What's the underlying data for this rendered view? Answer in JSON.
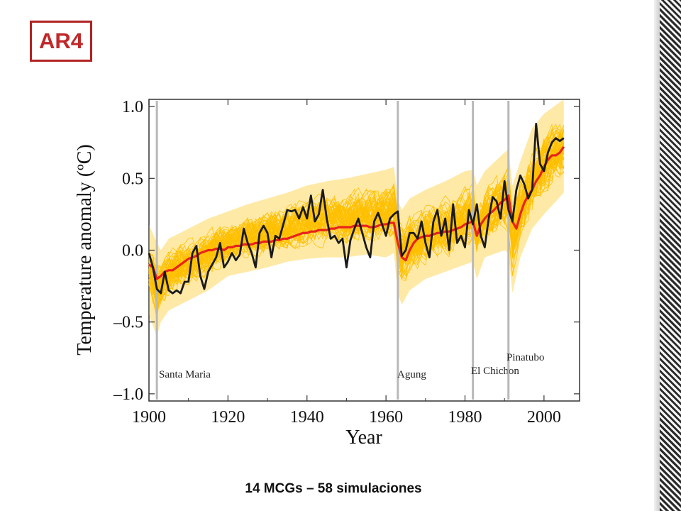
{
  "badge": "AR4",
  "caption": "14 MCGs – 58 simulaciones",
  "colors": {
    "observed": "#1a1a1a",
    "model_mean": "#e8231b",
    "simulations": "#ffc000",
    "volcano_lines": "#b8b8b8",
    "badge": "#c0282a"
  },
  "chart_data": {
    "type": "line",
    "xlabel": "Year",
    "ylabel": "Temperature anomaly (ºC)",
    "xlim": [
      1900,
      2009
    ],
    "ylim": [
      -1.05,
      1.05
    ],
    "x_ticks": [
      1900,
      1920,
      1940,
      1960,
      1980,
      2000
    ],
    "y_ticks": [
      -1.0,
      -0.5,
      0.0,
      0.5,
      1.0
    ],
    "y_tick_labels": [
      "–1.0",
      "–0.5",
      "0.0",
      "0.5",
      "1.0"
    ],
    "grid": false,
    "volcanoes": [
      {
        "name": "Santa Maria",
        "year": 1902
      },
      {
        "name": "Agung",
        "year": 1963
      },
      {
        "name": "El Chichon",
        "year": 1982
      },
      {
        "name": "Pinatubo",
        "year": 1991
      }
    ],
    "series": [
      {
        "role": "observed",
        "x": [
          1900,
          1901,
          1902,
          1903,
          1904,
          1905,
          1906,
          1907,
          1908,
          1909,
          1910,
          1911,
          1912,
          1913,
          1914,
          1915,
          1916,
          1917,
          1918,
          1919,
          1920,
          1921,
          1922,
          1923,
          1924,
          1925,
          1926,
          1927,
          1928,
          1929,
          1930,
          1931,
          1932,
          1933,
          1934,
          1935,
          1936,
          1937,
          1938,
          1939,
          1940,
          1941,
          1942,
          1943,
          1944,
          1945,
          1946,
          1947,
          1948,
          1949,
          1950,
          1951,
          1952,
          1953,
          1954,
          1955,
          1956,
          1957,
          1958,
          1959,
          1960,
          1961,
          1962,
          1963,
          1964,
          1965,
          1966,
          1967,
          1968,
          1969,
          1970,
          1971,
          1972,
          1973,
          1974,
          1975,
          1976,
          1977,
          1978,
          1979,
          1980,
          1981,
          1982,
          1983,
          1984,
          1985,
          1986,
          1987,
          1988,
          1989,
          1990,
          1991,
          1992,
          1993,
          1994,
          1995,
          1996,
          1997,
          1998,
          1999,
          2000,
          2001,
          2002,
          2003,
          2004,
          2005
        ],
        "values": [
          -0.02,
          -0.12,
          -0.27,
          -0.3,
          -0.15,
          -0.28,
          -0.3,
          -0.28,
          -0.3,
          -0.22,
          -0.22,
          -0.02,
          0.03,
          -0.18,
          -0.27,
          -0.15,
          -0.1,
          -0.05,
          0.05,
          -0.12,
          -0.08,
          -0.02,
          -0.07,
          -0.03,
          0.15,
          0.05,
          -0.02,
          -0.12,
          0.12,
          0.17,
          0.12,
          -0.05,
          0.1,
          0.08,
          0.18,
          0.28,
          0.27,
          0.28,
          0.22,
          0.3,
          0.22,
          0.38,
          0.2,
          0.25,
          0.42,
          0.22,
          0.08,
          0.1,
          0.05,
          0.08,
          -0.12,
          0.07,
          0.15,
          0.22,
          0.12,
          0.02,
          -0.05,
          0.2,
          0.26,
          0.18,
          0.1,
          0.22,
          0.25,
          0.27,
          -0.04,
          0.0,
          0.12,
          0.12,
          0.08,
          0.2,
          0.05,
          -0.05,
          0.2,
          0.28,
          0.1,
          0.22,
          0.0,
          0.32,
          0.05,
          0.1,
          0.02,
          0.28,
          0.18,
          0.32,
          0.1,
          0.02,
          0.22,
          0.37,
          0.34,
          0.22,
          0.48,
          0.28,
          0.2,
          0.42,
          0.52,
          0.46,
          0.36,
          0.42,
          0.88,
          0.6,
          0.55,
          0.68,
          0.75,
          0.78,
          0.76,
          0.78
        ]
      },
      {
        "role": "model_mean",
        "x": [
          1900,
          1901,
          1902,
          1903,
          1904,
          1905,
          1906,
          1907,
          1908,
          1909,
          1910,
          1911,
          1912,
          1913,
          1914,
          1915,
          1916,
          1917,
          1918,
          1919,
          1920,
          1921,
          1922,
          1923,
          1924,
          1925,
          1926,
          1927,
          1928,
          1929,
          1930,
          1931,
          1932,
          1933,
          1934,
          1935,
          1936,
          1937,
          1938,
          1939,
          1940,
          1941,
          1942,
          1943,
          1944,
          1945,
          1946,
          1947,
          1948,
          1949,
          1950,
          1951,
          1952,
          1953,
          1954,
          1955,
          1956,
          1957,
          1958,
          1959,
          1960,
          1961,
          1962,
          1963,
          1964,
          1965,
          1966,
          1967,
          1968,
          1969,
          1970,
          1971,
          1972,
          1973,
          1974,
          1975,
          1976,
          1977,
          1978,
          1979,
          1980,
          1981,
          1982,
          1983,
          1984,
          1985,
          1986,
          1987,
          1988,
          1989,
          1990,
          1991,
          1992,
          1993,
          1994,
          1995,
          1996,
          1997,
          1998,
          1999,
          2000,
          2001,
          2002,
          2003,
          2004,
          2005
        ],
        "values": [
          -0.1,
          -0.12,
          -0.2,
          -0.18,
          -0.15,
          -0.14,
          -0.14,
          -0.12,
          -0.1,
          -0.08,
          -0.06,
          -0.05,
          -0.04,
          -0.02,
          -0.01,
          0.0,
          0.0,
          0.01,
          0.01,
          0.0,
          0.02,
          0.02,
          0.03,
          0.03,
          0.04,
          0.04,
          0.04,
          0.05,
          0.05,
          0.06,
          0.06,
          0.06,
          0.07,
          0.07,
          0.08,
          0.08,
          0.09,
          0.1,
          0.11,
          0.12,
          0.12,
          0.13,
          0.13,
          0.14,
          0.14,
          0.14,
          0.15,
          0.15,
          0.16,
          0.16,
          0.16,
          0.16,
          0.17,
          0.17,
          0.17,
          0.17,
          0.16,
          0.16,
          0.17,
          0.18,
          0.18,
          0.19,
          0.19,
          0.05,
          -0.05,
          -0.07,
          0.0,
          0.05,
          0.08,
          0.09,
          0.1,
          0.1,
          0.11,
          0.12,
          0.12,
          0.13,
          0.13,
          0.14,
          0.15,
          0.16,
          0.18,
          0.19,
          0.2,
          0.1,
          0.18,
          0.22,
          0.25,
          0.27,
          0.3,
          0.33,
          0.35,
          0.38,
          0.2,
          0.15,
          0.25,
          0.33,
          0.38,
          0.42,
          0.48,
          0.52,
          0.58,
          0.63,
          0.66,
          0.66,
          0.68,
          0.72
        ]
      }
    ],
    "simulations_count": 58,
    "simulations_band": {
      "x": [
        1900,
        1902,
        1903,
        1905,
        1910,
        1915,
        1920,
        1925,
        1930,
        1935,
        1940,
        1945,
        1950,
        1955,
        1960,
        1962,
        1963,
        1964,
        1966,
        1970,
        1975,
        1980,
        1982,
        1983,
        1985,
        1990,
        1991,
        1992,
        1994,
        1997,
        2000,
        2005
      ],
      "lower": [
        -0.45,
        -0.6,
        -0.5,
        -0.42,
        -0.35,
        -0.28,
        -0.18,
        -0.15,
        -0.12,
        -0.08,
        -0.06,
        -0.05,
        -0.05,
        -0.03,
        -0.05,
        -0.02,
        -0.3,
        -0.38,
        -0.28,
        -0.2,
        -0.15,
        -0.1,
        -0.08,
        -0.2,
        -0.05,
        0.0,
        -0.02,
        -0.3,
        -0.05,
        0.15,
        0.25,
        0.4
      ],
      "upper": [
        0.18,
        0.05,
        0.0,
        0.08,
        0.15,
        0.22,
        0.27,
        0.32,
        0.36,
        0.4,
        0.45,
        0.48,
        0.5,
        0.53,
        0.56,
        0.58,
        0.35,
        0.28,
        0.36,
        0.42,
        0.48,
        0.55,
        0.56,
        0.45,
        0.55,
        0.68,
        0.7,
        0.45,
        0.62,
        0.85,
        0.95,
        1.05
      ]
    }
  }
}
